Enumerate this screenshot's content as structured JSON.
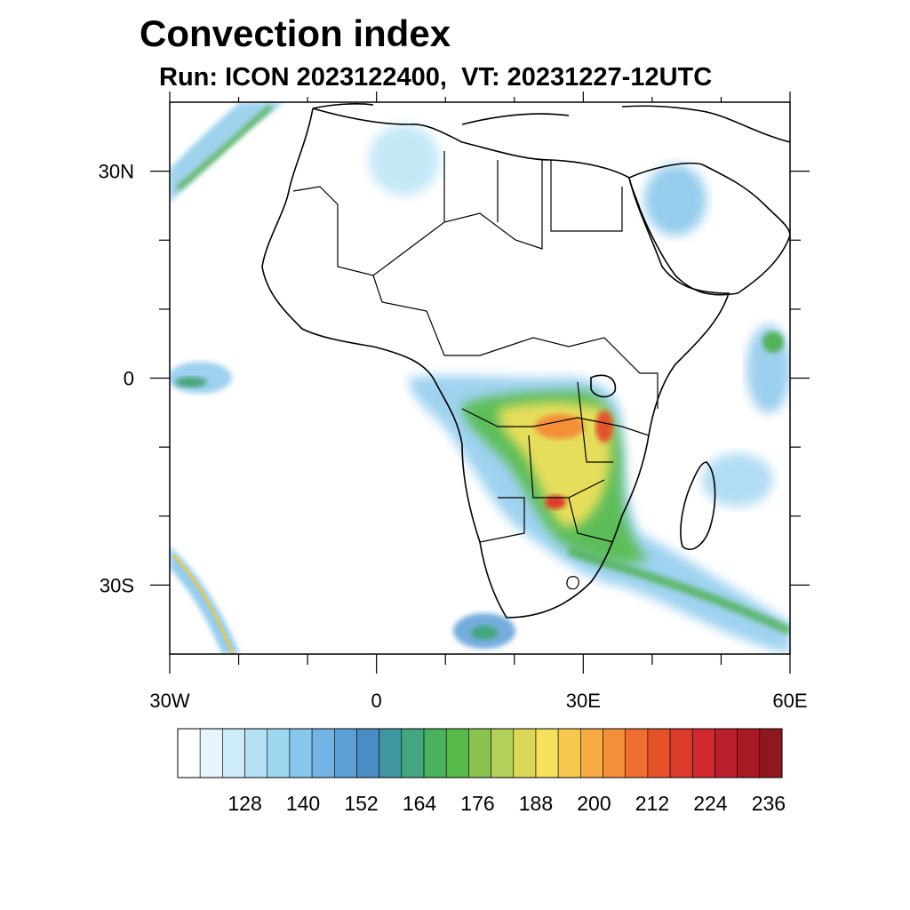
{
  "title": "Convection index",
  "subtitle": "Run: ICON 2023122400,  VT: 20231227-12UTC",
  "map": {
    "lon_range": [
      -30,
      60
    ],
    "lat_range": [
      -40,
      40
    ],
    "x_ticks": [
      {
        "value": -30,
        "label": "30W"
      },
      {
        "value": 0,
        "label": "0"
      },
      {
        "value": 30,
        "label": "30E"
      },
      {
        "value": 60,
        "label": "60E"
      }
    ],
    "y_ticks": [
      {
        "value": 30,
        "label": "30N"
      },
      {
        "value": 0,
        "label": "0"
      },
      {
        "value": -30,
        "label": "30S"
      }
    ],
    "minor_x_ticks": [
      -20,
      -10,
      10,
      20,
      40,
      50
    ],
    "minor_y_ticks": [
      20,
      10,
      -10,
      -20
    ]
  },
  "colorbar": {
    "colors": [
      "#ffffff",
      "#e6f5fc",
      "#cdebf8",
      "#b4e1f4",
      "#9cd7f0",
      "#87c7ec",
      "#72b5e5",
      "#5b9fd6",
      "#4a8cc4",
      "#3f96a0",
      "#43a67e",
      "#48b25c",
      "#57bb49",
      "#8ac250",
      "#b4d05a",
      "#dcd85a",
      "#f5e15c",
      "#f8c84e",
      "#f7ac43",
      "#f48f39",
      "#ee6f30",
      "#e5522a",
      "#dc3a2a",
      "#d02a2e",
      "#bb1f2c",
      "#a81b25",
      "#8f1820"
    ],
    "tick_labels": [
      "128",
      "140",
      "152",
      "164",
      "176",
      "188",
      "200",
      "212",
      "224",
      "236"
    ]
  }
}
